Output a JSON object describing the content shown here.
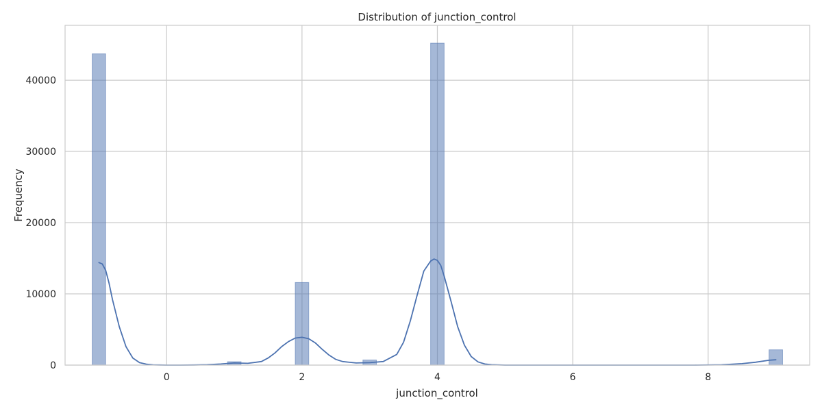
{
  "chart_data": {
    "type": "histogram",
    "title": "Distribution of junction_control",
    "xlabel": "junction_control",
    "ylabel": "Frequency",
    "xlim": [
      -1.5,
      9.5
    ],
    "ylim": [
      0,
      47700
    ],
    "x_ticks": [
      0,
      2,
      4,
      6,
      8
    ],
    "y_ticks": [
      0,
      10000,
      20000,
      30000,
      40000
    ],
    "grid": true,
    "bin_width": 0.2,
    "bars": [
      {
        "x": -1,
        "value": 43700
      },
      {
        "x": 1,
        "value": 480
      },
      {
        "x": 2,
        "value": 11600
      },
      {
        "x": 3,
        "value": 720
      },
      {
        "x": 4,
        "value": 45200
      },
      {
        "x": 9,
        "value": 2150
      }
    ],
    "kde": {
      "x": [
        -1.0,
        -0.95,
        -0.9,
        -0.85,
        -0.8,
        -0.7,
        -0.6,
        -0.5,
        -0.4,
        -0.3,
        -0.2,
        -0.1,
        0.0,
        0.2,
        0.4,
        0.6,
        0.8,
        1.0,
        1.2,
        1.4,
        1.5,
        1.6,
        1.7,
        1.8,
        1.9,
        2.0,
        2.1,
        2.2,
        2.3,
        2.4,
        2.5,
        2.6,
        2.8,
        3.0,
        3.2,
        3.4,
        3.5,
        3.6,
        3.7,
        3.8,
        3.9,
        3.95,
        4.0,
        4.05,
        4.1,
        4.2,
        4.3,
        4.4,
        4.5,
        4.6,
        4.7,
        4.8,
        5.0,
        5.5,
        6.0,
        7.0,
        7.8,
        8.2,
        8.5,
        8.7,
        8.9,
        9.0
      ],
      "y": [
        14400,
        14200,
        13300,
        11500,
        9200,
        5400,
        2600,
        1000,
        350,
        130,
        40,
        20,
        0,
        0,
        20,
        60,
        150,
        300,
        250,
        500,
        1000,
        1700,
        2600,
        3300,
        3800,
        3900,
        3700,
        3100,
        2200,
        1400,
        800,
        500,
        300,
        350,
        500,
        1500,
        3200,
        6200,
        9800,
        13200,
        14600,
        14900,
        14700,
        14000,
        12500,
        9000,
        5400,
        2800,
        1200,
        450,
        150,
        60,
        0,
        0,
        0,
        0,
        0,
        50,
        200,
        400,
        680,
        750
      ]
    }
  }
}
